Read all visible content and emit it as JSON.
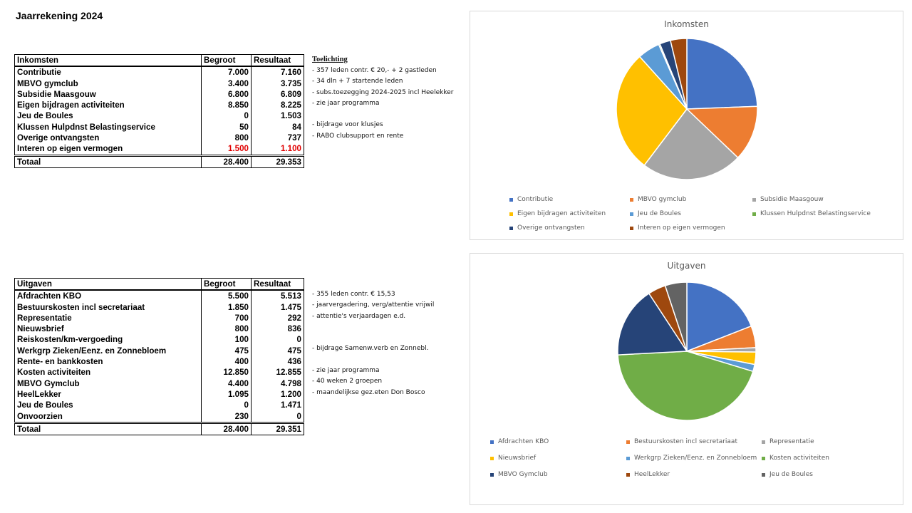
{
  "title": "Jaarrekening 2024",
  "income": {
    "header": [
      "Inkomsten",
      "Begroot",
      "Resultaat"
    ],
    "notes_header": "Toelichting",
    "rows": [
      {
        "label": "Contributie",
        "begroot": "7.000",
        "resultaat": "7.160",
        "note": "- 357 leden contr. € 20,- + 2 gastleden"
      },
      {
        "label": "MBVO gymclub",
        "begroot": "3.400",
        "resultaat": "3.735",
        "note": "- 34 dln + 7 startende leden"
      },
      {
        "label": "Subsidie Maasgouw",
        "begroot": "6.800",
        "resultaat": "6.809",
        "note": "- subs.toezegging 2024-2025 incl Heelekker"
      },
      {
        "label": "Eigen bijdragen activiteiten",
        "begroot": "8.850",
        "resultaat": "8.225",
        "note": "- zie jaar programma"
      },
      {
        "label": "Jeu de Boules",
        "begroot": "0",
        "resultaat": "1.503",
        "note": ""
      },
      {
        "label": "Klussen Hulpdnst Belastingservice",
        "begroot": "50",
        "resultaat": "84",
        "note": "- bijdrage voor klusjes"
      },
      {
        "label": "Overige ontvangsten",
        "begroot": "800",
        "resultaat": "737",
        "note": "- RABO clubsupport en rente"
      },
      {
        "label": "Interen op eigen vermogen",
        "begroot": "1.500",
        "resultaat": "1.100",
        "note": "",
        "red": true
      }
    ],
    "total": {
      "label": "Totaal",
      "begroot": "28.400",
      "resultaat": "29.353"
    }
  },
  "expenses": {
    "header": [
      "Uitgaven",
      "Begroot",
      "Resultaat"
    ],
    "rows": [
      {
        "label": "Afdrachten KBO",
        "begroot": "5.500",
        "resultaat": "5.513",
        "note": "- 355 leden contr. € 15,53"
      },
      {
        "label": "Bestuurskosten incl secretariaat",
        "begroot": "1.850",
        "resultaat": "1.475",
        "note": "- jaarvergadering, verg/attentie vrijwil"
      },
      {
        "label": "Representatie",
        "begroot": "700",
        "resultaat": "292",
        "note": "- attentie's verjaardagen e.d."
      },
      {
        "label": "Nieuwsbrief",
        "begroot": "800",
        "resultaat": "836",
        "note": ""
      },
      {
        "label": "Reiskosten/km-vergoeding",
        "begroot": "100",
        "resultaat": "0",
        "note": ""
      },
      {
        "label": "Werkgrp Zieken/Eenz. en Zonnebloem",
        "begroot": "475",
        "resultaat": "475",
        "note": "- bijdrage Samenw.verb en Zonnebl."
      },
      {
        "label": "Rente- en bankkosten",
        "begroot": "400",
        "resultaat": "436",
        "note": ""
      },
      {
        "label": "Kosten activiteiten",
        "begroot": "12.850",
        "resultaat": "12.855",
        "note": "- zie jaar programma"
      },
      {
        "label": "MBVO Gymclub",
        "begroot": "4.400",
        "resultaat": "4.798",
        "note": "- 40 weken 2 groepen"
      },
      {
        "label": "HeelLekker",
        "begroot": "1.095",
        "resultaat": "1.200",
        "note": "- maandelijkse gez.eten Don Bosco"
      },
      {
        "label": "Jeu de Boules",
        "begroot": "0",
        "resultaat": "1.471",
        "note": ""
      },
      {
        "label": "Onvoorzien",
        "begroot": "230",
        "resultaat": "0",
        "note": ""
      }
    ],
    "total": {
      "label": "Totaal",
      "begroot": "28.400",
      "resultaat": "29.351"
    }
  },
  "chart_data": [
    {
      "type": "pie",
      "title": "Inkomsten",
      "legend": "bottom",
      "categories": [
        "Contributie",
        "MBVO gymclub",
        "Subsidie Maasgouw",
        "Eigen bijdragen activiteiten",
        "Jeu de Boules",
        "Klussen Hulpdnst Belastingservice",
        "Overige ontvangsten",
        "Interen op eigen vermogen"
      ],
      "values": [
        7160,
        3735,
        6809,
        8225,
        1503,
        84,
        737,
        1100
      ],
      "colors": [
        "#4472c4",
        "#ed7d31",
        "#a5a5a5",
        "#ffc000",
        "#5b9bd5",
        "#70ad47",
        "#264478",
        "#9e480e"
      ]
    },
    {
      "type": "pie",
      "title": "Uitgaven",
      "legend": "bottom",
      "categories": [
        "Afdrachten KBO",
        "Bestuurskosten incl secretariaat",
        "Representatie",
        "Nieuwsbrief",
        "Werkgrp Zieken/Eenz. en Zonnebloem",
        "Kosten activiteiten",
        "MBVO Gymclub",
        "HeelLekker",
        "Jeu de Boules"
      ],
      "values": [
        5513,
        1475,
        292,
        836,
        475,
        12855,
        4798,
        1200,
        1471
      ],
      "colors": [
        "#4472c4",
        "#ed7d31",
        "#a5a5a5",
        "#ffc000",
        "#5b9bd5",
        "#70ad47",
        "#264478",
        "#9e480e",
        "#636363"
      ]
    }
  ]
}
